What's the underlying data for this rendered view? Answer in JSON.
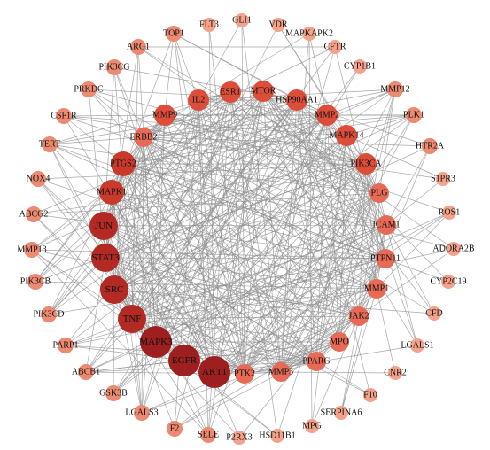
{
  "network": {
    "nodes": [
      {
        "label": "TOP1",
        "tier": 1
      },
      {
        "label": "FLT3",
        "tier": 0
      },
      {
        "label": "GLI1",
        "tier": 0
      },
      {
        "label": "VDR",
        "tier": 0
      },
      {
        "label": "MAPKAPK2",
        "tier": 0
      },
      {
        "label": "CFTR",
        "tier": 0
      },
      {
        "label": "CYP1B1",
        "tier": 0
      },
      {
        "label": "ARG1",
        "tier": 1
      },
      {
        "label": "PIK3CG",
        "tier": 1
      },
      {
        "label": "PRKDC",
        "tier": 1
      },
      {
        "label": "CSF1R",
        "tier": 1
      },
      {
        "label": "TERT",
        "tier": 1
      },
      {
        "label": "NOX4",
        "tier": 1
      },
      {
        "label": "ABCG2",
        "tier": 1
      },
      {
        "label": "MMP13",
        "tier": 1
      },
      {
        "label": "PIK3CB",
        "tier": 1
      },
      {
        "label": "PIK3CD",
        "tier": 1
      },
      {
        "label": "PARP1",
        "tier": 1
      },
      {
        "label": "ABCB1",
        "tier": 1
      },
      {
        "label": "GSK3B",
        "tier": 1
      },
      {
        "label": "LGALS3",
        "tier": 1
      },
      {
        "label": "F2",
        "tier": 1
      },
      {
        "label": "SELE",
        "tier": 1
      },
      {
        "label": "P2RX3",
        "tier": 0
      },
      {
        "label": "HSD11B1",
        "tier": 0
      },
      {
        "label": "MPG",
        "tier": 0
      },
      {
        "label": "SERPINA6",
        "tier": 0
      },
      {
        "label": "F10",
        "tier": 0
      },
      {
        "label": "CNR2",
        "tier": 0
      },
      {
        "label": "LGALS1",
        "tier": 0
      },
      {
        "label": "CFD",
        "tier": 0
      },
      {
        "label": "CYP2C19",
        "tier": 0
      },
      {
        "label": "ADORA2B",
        "tier": 0
      },
      {
        "label": "ROS1",
        "tier": 0
      },
      {
        "label": "S1PR3",
        "tier": 0
      },
      {
        "label": "HTR2A",
        "tier": 1
      },
      {
        "label": "PLK1",
        "tier": 1
      },
      {
        "label": "MMP12",
        "tier": 1
      },
      {
        "label": "IL2",
        "tier": 3
      },
      {
        "label": "ESR1",
        "tier": 3
      },
      {
        "label": "MTOR",
        "tier": 3
      },
      {
        "label": "HSP90AA1",
        "tier": 3
      },
      {
        "label": "MMP9",
        "tier": 3
      },
      {
        "label": "MMP2",
        "tier": 3
      },
      {
        "label": "ERBB2",
        "tier": 2
      },
      {
        "label": "MAPK14",
        "tier": 3
      },
      {
        "label": "PTGS2",
        "tier": 4
      },
      {
        "label": "PIK3CA",
        "tier": 3
      },
      {
        "label": "MAPK1",
        "tier": 4
      },
      {
        "label": "PLG",
        "tier": 2
      },
      {
        "label": "ICAM1",
        "tier": 2
      },
      {
        "label": "JUN",
        "tier": 5
      },
      {
        "label": "STAT3",
        "tier": 5
      },
      {
        "label": "PTPN11",
        "tier": 2
      },
      {
        "label": "SRC",
        "tier": 5
      },
      {
        "label": "MMP1",
        "tier": 2
      },
      {
        "label": "TNF",
        "tier": 5
      },
      {
        "label": "JAK2",
        "tier": 2
      },
      {
        "label": "MAPK3",
        "tier": 6
      },
      {
        "label": "MPO",
        "tier": 2
      },
      {
        "label": "PPARG",
        "tier": 2
      },
      {
        "label": "EGFR",
        "tier": 6
      },
      {
        "label": "AKT1",
        "tier": 6
      },
      {
        "label": "PTK2",
        "tier": 2
      },
      {
        "label": "MMP3",
        "tier": 2
      }
    ],
    "tier_colors": [
      "#f4a28c",
      "#ec8a72",
      "#e66a55",
      "#dd4e3a",
      "#ca3a2c",
      "#b32a24",
      "#9e1f1f"
    ]
  }
}
